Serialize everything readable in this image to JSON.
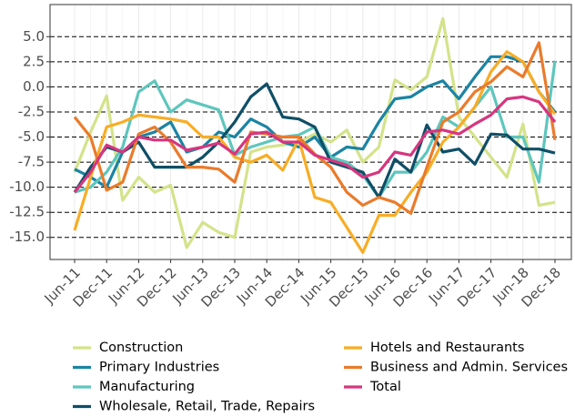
{
  "chart_data": {
    "type": "line",
    "categories": [
      "Jun-11",
      null,
      "Dec-11",
      null,
      "Jun-12",
      null,
      "Dec-12",
      null,
      "Jun-13",
      null,
      "Dec-13",
      null,
      "Jun-14",
      null,
      "Dec-14",
      null,
      "Jun-15",
      null,
      "Dec-15",
      null,
      "Jun-16",
      null,
      "Dec-16",
      null,
      "Jun-17",
      null,
      "Dec-17",
      null,
      "Jun-18",
      null,
      "Dec-18"
    ],
    "ylim": [
      -17.2,
      8.2
    ],
    "yticks": [
      {
        "value": 5,
        "label": "5.0"
      },
      {
        "value": 2.5,
        "label": "2.5"
      },
      {
        "value": 0,
        "label": "0.0"
      },
      {
        "value": -2.5,
        "label": "-2.5"
      },
      {
        "value": -5,
        "label": "-5.0"
      },
      {
        "value": -7.5,
        "label": "-7.5"
      },
      {
        "value": -10,
        "label": "-10.0"
      },
      {
        "value": -12.5,
        "label": "-12.5"
      },
      {
        "value": -15,
        "label": "-15.0"
      }
    ],
    "grid": true,
    "legend": "bottom",
    "series": [
      {
        "name": "Construction",
        "color": "#d4e38a",
        "values": [
          -8.5,
          -4.5,
          -0.9,
          -11.3,
          -9,
          -10.5,
          -9.8,
          -16,
          -13.5,
          -14.5,
          -15,
          -6.5,
          -6,
          -5.8,
          -5.5,
          -4.7,
          -5.5,
          -4.3,
          -7.5,
          -6,
          0.7,
          -0.3,
          1,
          6.8,
          -3,
          -5,
          -7,
          -9,
          -3.7,
          -11.8,
          -11.5
        ]
      },
      {
        "name": "Primary Industries",
        "color": "#1b84a3",
        "values": [
          -8.2,
          -9,
          -10,
          -6.5,
          -5,
          -4.5,
          -3.5,
          -6.5,
          -6,
          -4.5,
          -5,
          -3.2,
          -4,
          -5.5,
          -6,
          -5,
          -7,
          -6,
          -6.2,
          -3.5,
          -1.2,
          -1,
          0,
          0.6,
          -1.2,
          1,
          3,
          3,
          2.5,
          -0.5,
          -2.5
        ]
      },
      {
        "name": "Manufacturing",
        "color": "#5ec6bd",
        "values": [
          -10.5,
          -10,
          -8.5,
          -6,
          -0.5,
          0.6,
          -2.5,
          -1.3,
          -1.8,
          -2.3,
          -6.8,
          -6,
          -5.5,
          -5,
          -4.8,
          -4,
          -7,
          -7.5,
          -8.8,
          -11,
          -8.5,
          -8.5,
          -6.5,
          -3,
          -4,
          -2,
          0,
          -5,
          -5,
          -9.5,
          2.6
        ]
      },
      {
        "name": "Wholesale, Retail, Trade, Repairs",
        "color": "#0f4f66",
        "values": [
          -10.5,
          -8,
          -6,
          -6.5,
          -5.5,
          -8,
          -8,
          -8,
          -7,
          -5.5,
          -3.5,
          -1,
          0.3,
          -3,
          -3.2,
          -4,
          -7.5,
          -8,
          -8.5,
          -11,
          -7.2,
          -8.5,
          -3.8,
          -6.5,
          -6.2,
          -7.7,
          -4.7,
          -4.8,
          -6.2,
          -6.2,
          -6.6
        ]
      },
      {
        "name": "Hotels and Restaurants",
        "color": "#f8ad25",
        "values": [
          -14.3,
          -9,
          -4,
          -3.5,
          -2.8,
          -3,
          -3.2,
          -3.5,
          -5,
          -5,
          -7,
          -7.5,
          -6.8,
          -8.3,
          -5.2,
          -11,
          -11.5,
          -14,
          -16.5,
          -12.8,
          -12.8,
          -10.5,
          -8.5,
          -5.5,
          -4,
          -2,
          1.5,
          3.5,
          2.5,
          -0.5,
          -2.7
        ]
      },
      {
        "name": "Business and Admin. Services",
        "color": "#ea7b2b",
        "values": [
          -3,
          -5,
          -10.3,
          -9.5,
          -4.7,
          -4,
          -5.5,
          -8,
          -8,
          -8.2,
          -9.5,
          -4.5,
          -4.7,
          -5,
          -5,
          -6.7,
          -8,
          -10.5,
          -11.8,
          -11,
          -11.5,
          -12.6,
          -8,
          -3.5,
          -2.5,
          -0.5,
          0.5,
          2,
          1,
          4.4,
          -5.3
        ]
      },
      {
        "name": "Total",
        "color": "#d6367f",
        "values": [
          -10.5,
          -8.5,
          -5.8,
          -6.5,
          -5,
          -5.3,
          -5.3,
          -6.3,
          -6,
          -5.6,
          -6.7,
          -4.7,
          -4.5,
          -5.5,
          -5.5,
          -6.8,
          -7.3,
          -7.8,
          -9,
          -8.5,
          -6.5,
          -6.8,
          -4.5,
          -4.3,
          -4.7,
          -3.7,
          -2.8,
          -1.2,
          -1,
          -1.5,
          -3.5
        ]
      }
    ]
  }
}
